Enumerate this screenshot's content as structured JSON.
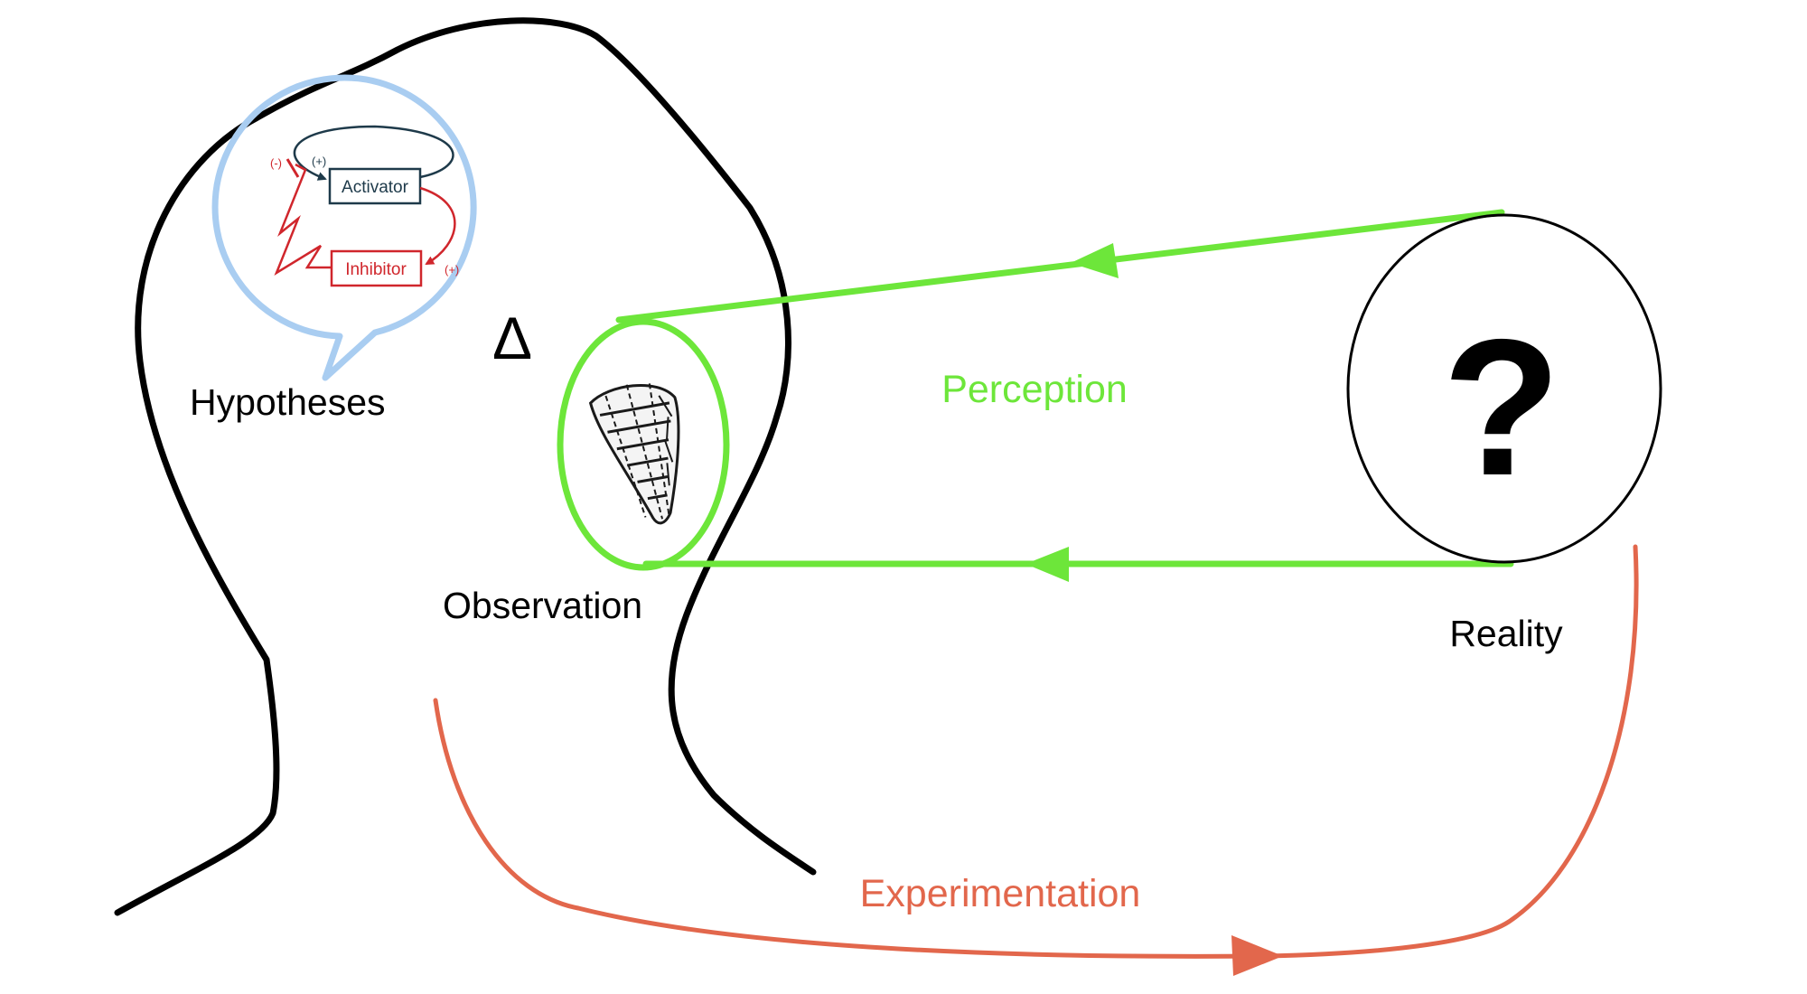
{
  "labels": {
    "hypotheses": "Hypotheses",
    "observation": "Observation",
    "perception": "Perception",
    "reality": "Reality",
    "experimentation": "Experimentation",
    "delta": "Δ",
    "question_mark": "?"
  },
  "regulation_diagram": {
    "activator": "Activator",
    "inhibitor": "Inhibitor",
    "activator_self_sign": "(+)",
    "activator_to_inhibitor_sign": "(+)",
    "inhibitor_to_activator_sign": "(-)"
  },
  "colors": {
    "head_outline": "#000000",
    "thought_bubble": "#a9cdf1",
    "perception": "#6de63a",
    "experimentation": "#e2674c",
    "activator": "#1e3a4a",
    "inhibitor": "#d0262c"
  }
}
